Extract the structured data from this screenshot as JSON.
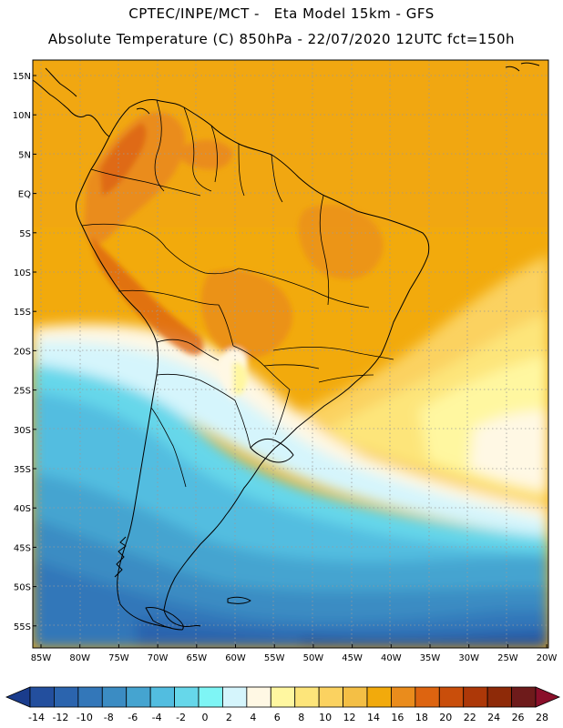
{
  "header": {
    "line1": "CPTEC/INPE/MCT -   Eta Model 15km - GFS",
    "line2": "Absolute Temperature (C) 850hPa - 22/07/2020 12UTC fct=150h"
  },
  "map": {
    "lat_labels": [
      "15N",
      "10N",
      "5N",
      "EQ",
      "5S",
      "10S",
      "15S",
      "20S",
      "25S",
      "30S",
      "35S",
      "40S",
      "45S",
      "50S",
      "55S"
    ],
    "lon_labels": [
      "85W",
      "80W",
      "75W",
      "70W",
      "65W",
      "60W",
      "55W",
      "50W",
      "45W",
      "40W",
      "35W",
      "30W",
      "25W",
      "20W"
    ],
    "extent": {
      "lon_min": -86,
      "lon_max": -20,
      "lat_min": -58,
      "lat_max": 16
    }
  },
  "colorbar": {
    "colors": [
      "#1a3c8c",
      "#234f9e",
      "#2b64ae",
      "#3377b9",
      "#3b8cc3",
      "#45a4d0",
      "#52bde0",
      "#66d7ea",
      "#7ef5f5",
      "#d5f5fc",
      "#fff8e4",
      "#fff7a0",
      "#fde57a",
      "#fbd260",
      "#f4bf45",
      "#f2aa0c",
      "#ea8c1c",
      "#dd6410",
      "#c94e0b",
      "#ad3808",
      "#8e2a08",
      "#6e1b1b",
      "#8a0f2a"
    ],
    "labels": [
      "-14",
      "-12",
      "-10",
      "-8",
      "-6",
      "-4",
      "-2",
      "0",
      "2",
      "4",
      "6",
      "8",
      "10",
      "12",
      "14",
      "16",
      "18",
      "20",
      "22",
      "24",
      "26",
      "28"
    ]
  }
}
